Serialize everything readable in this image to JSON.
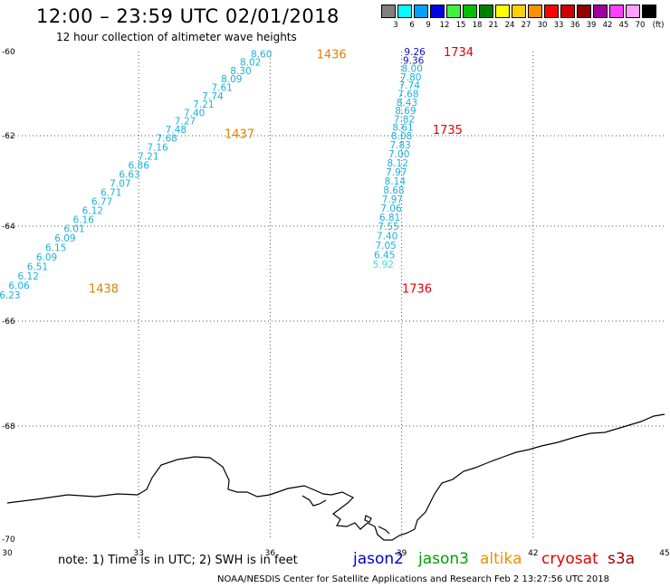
{
  "header": {
    "title": "12:00 – 23:59 UTC 02/01/2018",
    "subtitle": "12 hour collection of altimeter wave heights"
  },
  "legend": {
    "unit": "(ft)",
    "scale": [
      {
        "label": "3",
        "color": "#808080"
      },
      {
        "label": "6",
        "color": "#00ffff"
      },
      {
        "label": "9",
        "color": "#00a0ff"
      },
      {
        "label": "12",
        "color": "#0000e0"
      },
      {
        "label": "15",
        "color": "#40f040"
      },
      {
        "label": "18",
        "color": "#00c000"
      },
      {
        "label": "21",
        "color": "#008000"
      },
      {
        "label": "24",
        "color": "#ffff00"
      },
      {
        "label": "27",
        "color": "#ffd000"
      },
      {
        "label": "30",
        "color": "#ff9000"
      },
      {
        "label": "33",
        "color": "#ff0000"
      },
      {
        "label": "36",
        "color": "#d00000"
      },
      {
        "label": "39",
        "color": "#900000"
      },
      {
        "label": "42",
        "color": "#a000a0"
      },
      {
        "label": "45",
        "color": "#ff40ff"
      },
      {
        "label": "70",
        "color": "#ffa0ff"
      },
      {
        "label": "",
        "color": "#000000"
      }
    ]
  },
  "axes": {
    "x_ticks": [
      "30",
      "33",
      "36",
      "39",
      "42",
      "45"
    ],
    "y_ticks": [
      "-60",
      "-62",
      "-64",
      "-66",
      "-68",
      "-70"
    ],
    "lon_range": [
      30,
      45
    ],
    "lat_range": [
      -70,
      -60
    ]
  },
  "tracks": [
    {
      "label_color": "#e08000",
      "time_labels": [
        {
          "text": "1436",
          "lon": 37.4,
          "lat": -60.05
        },
        {
          "text": "1437",
          "lon": 35.3,
          "lat": -61.95
        },
        {
          "text": "1438",
          "lon": 32.2,
          "lat": -65.3
        }
      ],
      "points": [
        {
          "text": "8.60",
          "lon": 35.8,
          "lat": -60.05,
          "color": "#1ab0dc"
        },
        {
          "text": "8.02",
          "lon": 35.55,
          "lat": -60.25,
          "color": "#1ab0dc"
        },
        {
          "text": "8.30",
          "lon": 35.33,
          "lat": -60.45,
          "color": "#1ab0dc"
        },
        {
          "text": "8.09",
          "lon": 35.12,
          "lat": -60.65,
          "color": "#1ab0dc"
        },
        {
          "text": "7.61",
          "lon": 34.9,
          "lat": -60.85,
          "color": "#1ab0dc"
        },
        {
          "text": "7.74",
          "lon": 34.69,
          "lat": -61.05,
          "color": "#1ab0dc"
        },
        {
          "text": "7.21",
          "lon": 34.48,
          "lat": -61.25,
          "color": "#1ab0dc"
        },
        {
          "text": "7.40",
          "lon": 34.27,
          "lat": -61.45,
          "color": "#1ab0dc"
        },
        {
          "text": "7.27",
          "lon": 34.06,
          "lat": -61.65,
          "color": "#1ab0dc"
        },
        {
          "text": "7.48",
          "lon": 33.85,
          "lat": -61.85,
          "color": "#1ab0dc"
        },
        {
          "text": "7.68",
          "lon": 33.64,
          "lat": -62.05,
          "color": "#1ab0dc"
        },
        {
          "text": "7.16",
          "lon": 33.43,
          "lat": -62.25,
          "color": "#1ab0dc"
        },
        {
          "text": "7.21",
          "lon": 33.22,
          "lat": -62.45,
          "color": "#1ab0dc"
        },
        {
          "text": "6.86",
          "lon": 33.0,
          "lat": -62.65,
          "color": "#1ab0dc"
        },
        {
          "text": "6.63",
          "lon": 32.79,
          "lat": -62.85,
          "color": "#1ab0dc"
        },
        {
          "text": "7.07",
          "lon": 32.58,
          "lat": -63.05,
          "color": "#1ab0dc"
        },
        {
          "text": "6.71",
          "lon": 32.37,
          "lat": -63.25,
          "color": "#1ab0dc"
        },
        {
          "text": "6.77",
          "lon": 32.16,
          "lat": -63.45,
          "color": "#1ab0dc"
        },
        {
          "text": "6.12",
          "lon": 31.95,
          "lat": -63.65,
          "color": "#1ab0dc"
        },
        {
          "text": "6.16",
          "lon": 31.74,
          "lat": -63.85,
          "color": "#1ab0dc"
        },
        {
          "text": "6.01",
          "lon": 31.53,
          "lat": -64.05,
          "color": "#1ab0dc"
        },
        {
          "text": "6.09",
          "lon": 31.32,
          "lat": -64.25,
          "color": "#1ab0dc"
        },
        {
          "text": "6.15",
          "lon": 31.11,
          "lat": -64.45,
          "color": "#1ab0dc"
        },
        {
          "text": "6.09",
          "lon": 30.9,
          "lat": -64.65,
          "color": "#1ab0dc"
        },
        {
          "text": "6.51",
          "lon": 30.69,
          "lat": -64.85,
          "color": "#1ab0dc"
        },
        {
          "text": "6.12",
          "lon": 30.48,
          "lat": -65.05,
          "color": "#1ab0dc"
        },
        {
          "text": "6.06",
          "lon": 30.27,
          "lat": -65.25,
          "color": "#1ab0dc"
        },
        {
          "text": "6.23",
          "lon": 30.06,
          "lat": -65.45,
          "color": "#1ab0dc"
        }
      ]
    },
    {
      "label_color": "#e00000",
      "time_labels": [
        {
          "text": "1734",
          "lon": 40.3,
          "lat": -60.0
        },
        {
          "text": "1735",
          "lon": 40.05,
          "lat": -61.85
        },
        {
          "text": "1736",
          "lon": 39.35,
          "lat": -65.3
        }
      ],
      "points": [
        {
          "text": "9.26",
          "lon": 39.3,
          "lat": -60.0,
          "color": "#1010c0"
        },
        {
          "text": "9.36",
          "lon": 39.27,
          "lat": -60.2,
          "color": "#1010c0"
        },
        {
          "text": "8.00",
          "lon": 39.24,
          "lat": -60.4,
          "color": "#1ab0dc"
        },
        {
          "text": "7.80",
          "lon": 39.21,
          "lat": -60.6,
          "color": "#1ab0dc"
        },
        {
          "text": "7.74",
          "lon": 39.18,
          "lat": -60.8,
          "color": "#1ab0dc"
        },
        {
          "text": "7.68",
          "lon": 39.15,
          "lat": -61.0,
          "color": "#1ab0dc"
        },
        {
          "text": "8.43",
          "lon": 39.12,
          "lat": -61.2,
          "color": "#1ab0dc"
        },
        {
          "text": "8.69",
          "lon": 39.09,
          "lat": -61.4,
          "color": "#1ab0dc"
        },
        {
          "text": "7.82",
          "lon": 39.06,
          "lat": -61.6,
          "color": "#1ab0dc"
        },
        {
          "text": "8.61",
          "lon": 39.03,
          "lat": -61.8,
          "color": "#1ab0dc"
        },
        {
          "text": "8.08",
          "lon": 39.0,
          "lat": -62.0,
          "color": "#1ab0dc"
        },
        {
          "text": "7.83",
          "lon": 38.97,
          "lat": -62.2,
          "color": "#1ab0dc"
        },
        {
          "text": "7.00",
          "lon": 38.94,
          "lat": -62.4,
          "color": "#1ab0dc"
        },
        {
          "text": "8.12",
          "lon": 38.91,
          "lat": -62.6,
          "color": "#1ab0dc"
        },
        {
          "text": "7.97",
          "lon": 38.88,
          "lat": -62.8,
          "color": "#1ab0dc"
        },
        {
          "text": "8.14",
          "lon": 38.85,
          "lat": -63.0,
          "color": "#1ab0dc"
        },
        {
          "text": "8.68",
          "lon": 38.82,
          "lat": -63.2,
          "color": "#1ab0dc"
        },
        {
          "text": "7.97",
          "lon": 38.79,
          "lat": -63.4,
          "color": "#1ab0dc"
        },
        {
          "text": "7.06",
          "lon": 38.76,
          "lat": -63.6,
          "color": "#1ab0dc"
        },
        {
          "text": "6.81",
          "lon": 38.73,
          "lat": -63.8,
          "color": "#1ab0dc"
        },
        {
          "text": "7.55",
          "lon": 38.7,
          "lat": -64.0,
          "color": "#1ab0dc"
        },
        {
          "text": "7.40",
          "lon": 38.67,
          "lat": -64.2,
          "color": "#1ab0dc"
        },
        {
          "text": "7.05",
          "lon": 38.64,
          "lat": -64.4,
          "color": "#1ab0dc"
        },
        {
          "text": "6.45",
          "lon": 38.61,
          "lat": -64.6,
          "color": "#1ab0dc"
        },
        {
          "text": "5.92",
          "lon": 38.58,
          "lat": -64.8,
          "color": "#30e0f0"
        }
      ]
    }
  ],
  "footer": {
    "note": "note:  1) Time is in UTC;  2) SWH is in feet",
    "satellites": [
      {
        "name": "jason2",
        "color": "#0000d0"
      },
      {
        "name": "jason3",
        "color": "#00a000"
      },
      {
        "name": "altika",
        "color": "#f09000"
      },
      {
        "name": "cryosat",
        "color": "#e00000"
      },
      {
        "name": "s3a",
        "color": "#a00000"
      }
    ],
    "credit": "NOAA/NESDIS Center for Satellite Applications and Research    Feb  2 13:27:56 UTC 2018"
  }
}
